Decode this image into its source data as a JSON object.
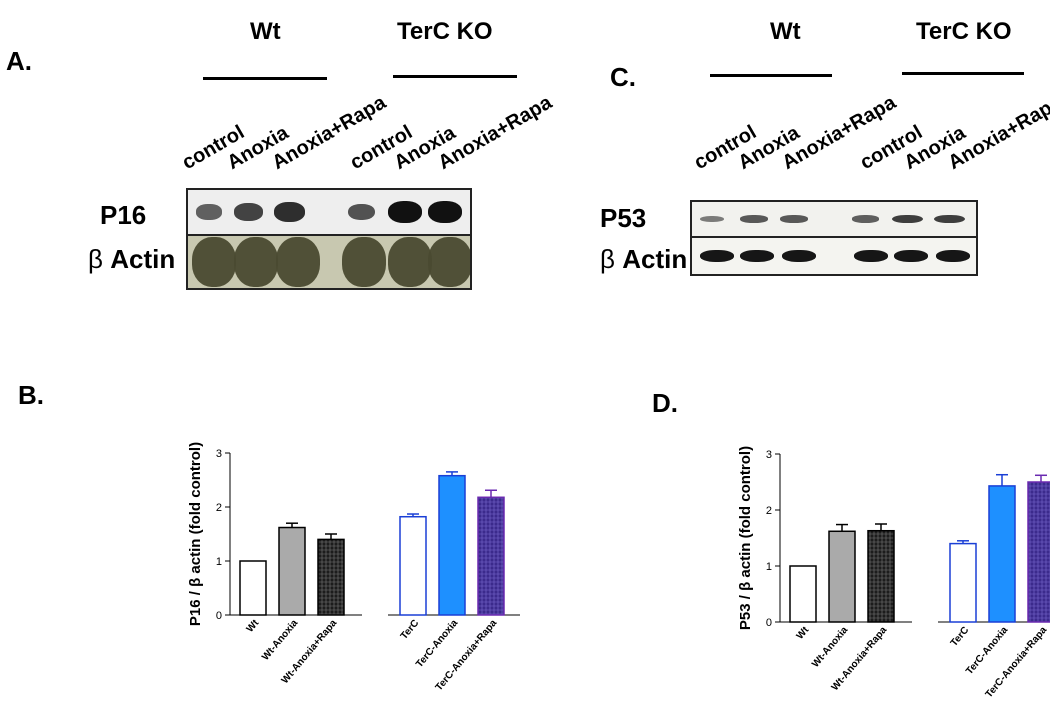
{
  "colors": {
    "wt_control": "#ffffff",
    "wt_anoxia": "#aaaaaa",
    "wt_anoxia_rapa": "#222222",
    "terc_control": "#ffffff",
    "terc_anoxia": "#1e90ff",
    "terc_anoxia_rapa": "#3b2a8c",
    "terc_outline": "#1a3fd6",
    "actin_blot": "#4a4a30"
  },
  "blot_a": {
    "letter": "A.",
    "group_wt": "Wt",
    "group_ko": "TerC KO",
    "lanes": [
      "control",
      "Anoxia",
      "Anoxia+Rapa",
      "control",
      "Anoxia",
      "Anoxia+Rapa"
    ],
    "row1": "P16",
    "row2_symbol": "β",
    "row2": "Actin",
    "band_intensity": [
      0.45,
      0.65,
      0.8,
      0.55,
      1.0,
      1.0
    ]
  },
  "blot_c": {
    "letter": "C.",
    "group_wt": "Wt",
    "group_ko": "TerC KO",
    "lanes": [
      "control",
      "Anoxia",
      "Anoxia+Rapa",
      "control",
      "Anoxia",
      "Anoxia+Rapa"
    ],
    "row1": "P53",
    "row2_symbol": "β",
    "row2": "Actin",
    "band_intensity": [
      0.35,
      0.6,
      0.6,
      0.55,
      0.8,
      0.8
    ]
  },
  "chart_data": [
    {
      "type": "bar",
      "letter": "B.",
      "ylabel": "P16 / β actin (fold control)",
      "ylim": [
        0,
        3
      ],
      "yticks": [
        0,
        1,
        2,
        3
      ],
      "categories": [
        "Wt",
        "Wt-Anoxia",
        "Wt-Anoxia+Rapa",
        "TerC",
        "TerC-Anoxia",
        "TerC-Anoxia+Rapa"
      ],
      "values": [
        1.0,
        1.62,
        1.4,
        1.82,
        2.58,
        2.18
      ],
      "errors": [
        0.0,
        0.08,
        0.1,
        0.05,
        0.07,
        0.13
      ],
      "grid": false
    },
    {
      "type": "bar",
      "letter": "D.",
      "ylabel": "P53 / β actin (fold control)",
      "ylim": [
        0,
        3
      ],
      "yticks": [
        0,
        1,
        2,
        3
      ],
      "categories": [
        "Wt",
        "Wt-Anoxia",
        "Wt-Anoxia+Rapa",
        "TerC",
        "TerC-Anoxia",
        "TerC-Anoxia+Rapa"
      ],
      "values": [
        1.0,
        1.62,
        1.63,
        1.4,
        2.43,
        2.5
      ],
      "errors": [
        0.0,
        0.12,
        0.12,
        0.05,
        0.2,
        0.12
      ],
      "grid": false
    }
  ]
}
